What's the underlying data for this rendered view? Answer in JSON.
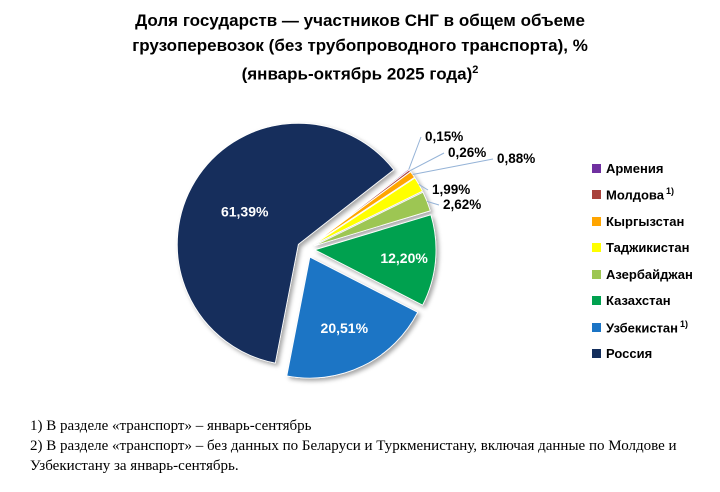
{
  "title": {
    "line1": "Доля государств — участников СНГ в общем объеме",
    "line2": "грузоперевозок (без трубопроводного транспорта), %",
    "line3": "(январь-октябрь 2025 года)",
    "superscript": "2"
  },
  "chart_data": {
    "type": "pie",
    "title": "Доля государств — участников СНГ в общем объеме грузоперевозок (без трубопроводного транспорта), % (январь-октябрь 2025 года)",
    "unit": "%",
    "decimal_separator": ",",
    "start_angle_deg": 52,
    "legend_position": "right",
    "series": [
      {
        "name": "Армения",
        "value": 0.15,
        "label": "0,15%",
        "color": "#7030A0"
      },
      {
        "name": "Молдова",
        "value": 0.26,
        "label": "0,26%",
        "color": "#A8423C",
        "note": "1)"
      },
      {
        "name": "Кыргызстан",
        "value": 0.88,
        "label": "0,88%",
        "color": "#FFA500"
      },
      {
        "name": "Таджикистан",
        "value": 1.99,
        "label": "1,99%",
        "color": "#FFFF00"
      },
      {
        "name": "Азербайджан",
        "value": 2.62,
        "label": "2,62%",
        "color": "#9DC652"
      },
      {
        "name": "Казахстан",
        "value": 12.2,
        "label": "12,20%",
        "color": "#00A14F"
      },
      {
        "name": "Узбекистан",
        "value": 20.51,
        "label": "20,51%",
        "color": "#1B74C5",
        "note": "1)"
      },
      {
        "name": "Россия",
        "value": 61.39,
        "label": "61,39%",
        "color": "#132E5C"
      }
    ],
    "leader_line_color": "#95B3D7"
  },
  "footnotes": {
    "line1": "1) В разделе «транспорт» – январь-сентябрь",
    "line2": "2) В разделе «транспорт» – без данных по Беларуси и Туркменистану, включая данные по Молдове и Узбекистану за январь-сентябрь."
  }
}
